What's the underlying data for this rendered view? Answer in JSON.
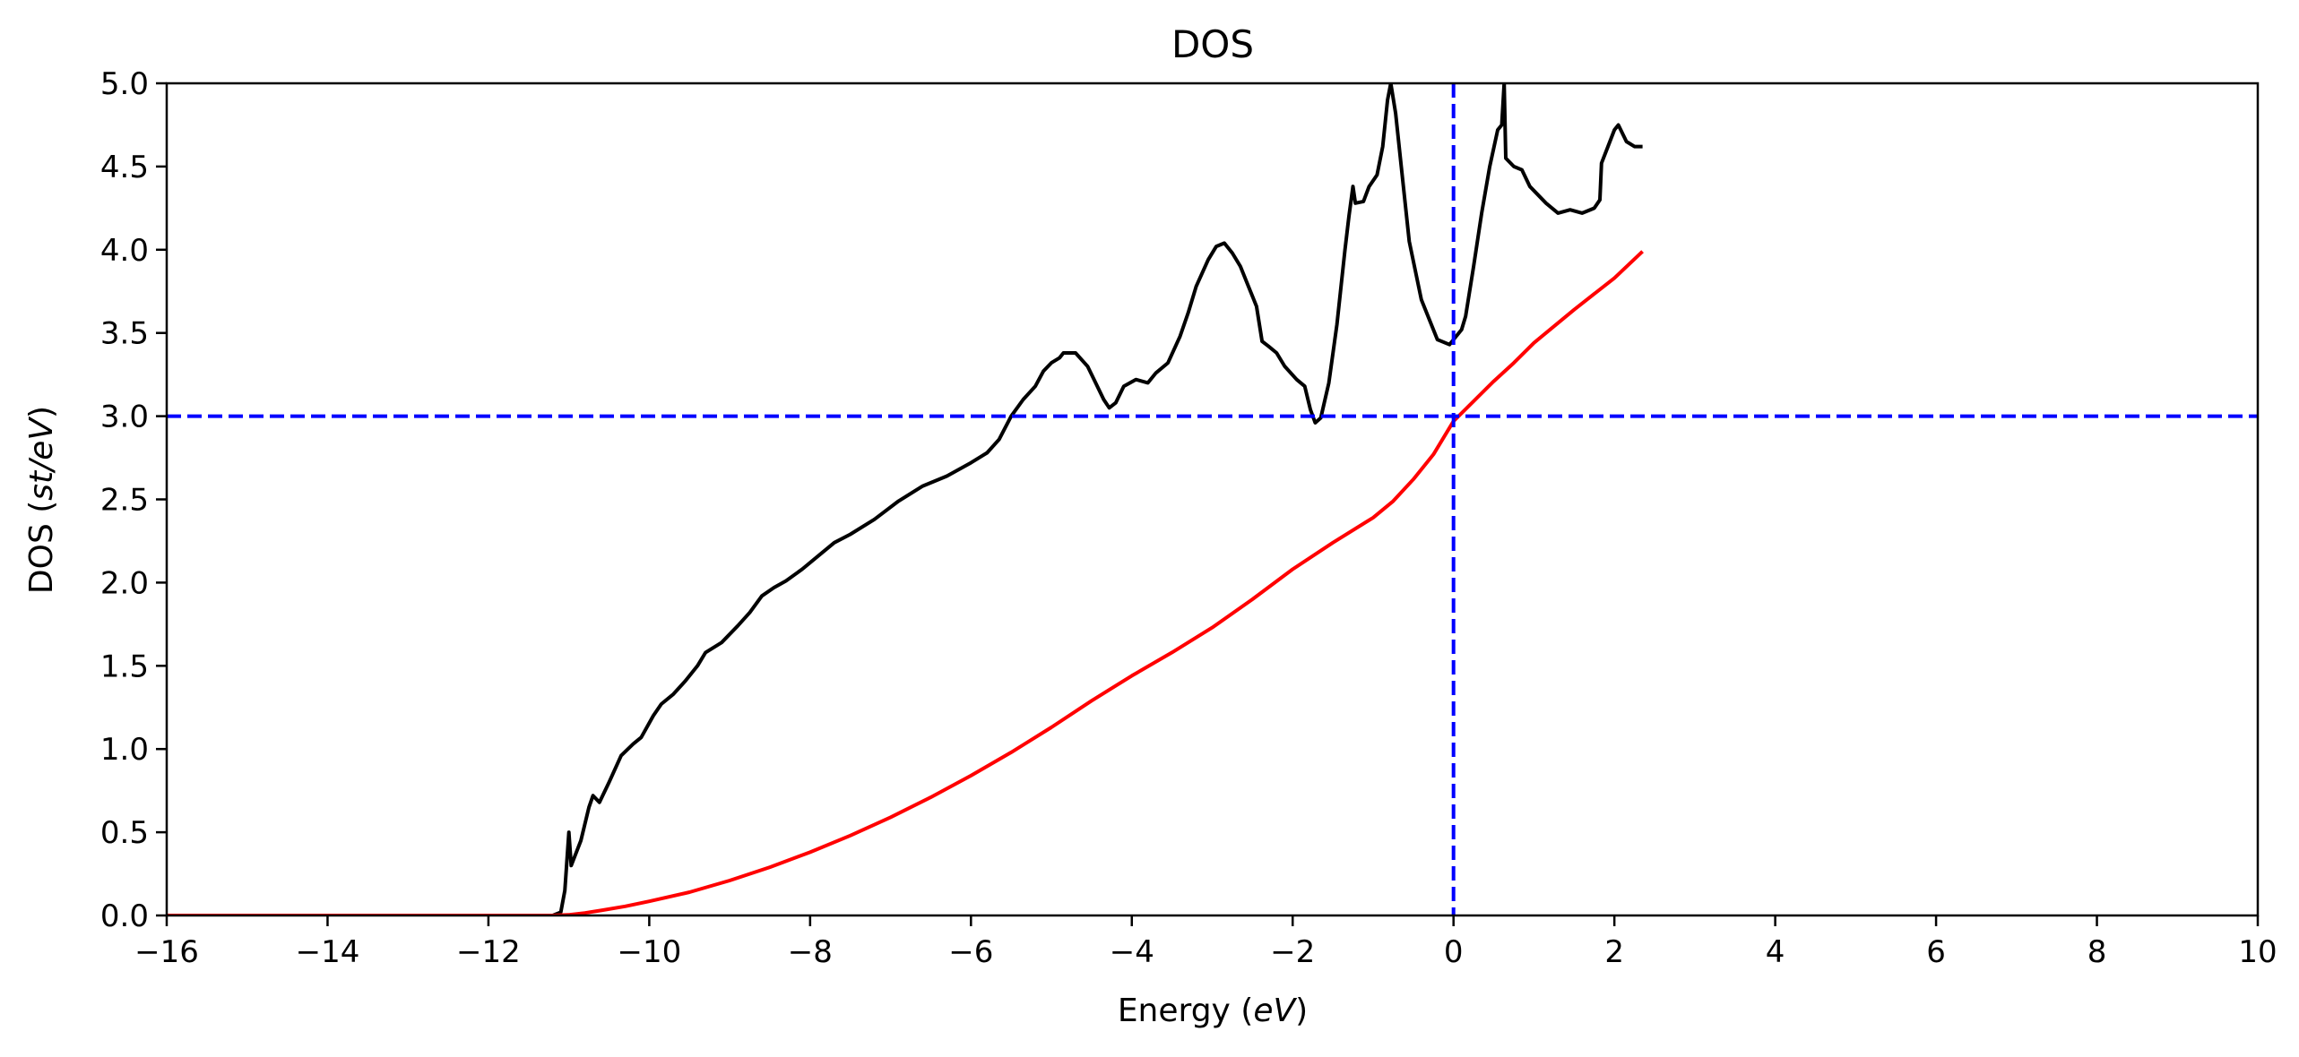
{
  "chart_data": {
    "type": "line",
    "title": "DOS",
    "xlabel": {
      "prefix": "Energy (",
      "italic": "eV",
      "suffix": ")"
    },
    "ylabel": {
      "prefix": "DOS (",
      "italic": "st/eV",
      "suffix": ")"
    },
    "xlim": [
      -16,
      10
    ],
    "ylim": [
      0,
      5
    ],
    "x_ticks": [
      -16,
      -14,
      -12,
      -10,
      -8,
      -6,
      -4,
      -2,
      0,
      2,
      4,
      6,
      8,
      10
    ],
    "x_tick_labels": [
      "−16",
      "−14",
      "−12",
      "−10",
      "−8",
      "−6",
      "−4",
      "−2",
      "0",
      "2",
      "4",
      "6",
      "8",
      "10"
    ],
    "y_ticks": [
      0,
      0.5,
      1,
      1.5,
      2,
      2.5,
      3,
      3.5,
      4,
      4.5,
      5
    ],
    "y_tick_labels": [
      "0.0",
      "0.5",
      "1.0",
      "1.5",
      "2.0",
      "2.5",
      "3.0",
      "3.5",
      "4.0",
      "4.5",
      "5.0"
    ],
    "grid": false,
    "reference_lines": [
      {
        "orientation": "horizontal",
        "value": 3.0,
        "color": "#0000ff",
        "style": "dashed"
      },
      {
        "orientation": "vertical",
        "value": 0.0,
        "color": "#0000ff",
        "style": "dashed"
      }
    ],
    "series": [
      {
        "color": "#000000",
        "points": [
          [
            -16,
            0
          ],
          [
            -11.2,
            0
          ],
          [
            -11.1,
            0.02
          ],
          [
            -11.05,
            0.15
          ],
          [
            -11.0,
            0.5
          ],
          [
            -10.97,
            0.3
          ],
          [
            -10.85,
            0.45
          ],
          [
            -10.75,
            0.65
          ],
          [
            -10.7,
            0.72
          ],
          [
            -10.62,
            0.68
          ],
          [
            -10.5,
            0.8
          ],
          [
            -10.35,
            0.96
          ],
          [
            -10.2,
            1.03
          ],
          [
            -10.1,
            1.07
          ],
          [
            -9.95,
            1.2
          ],
          [
            -9.85,
            1.27
          ],
          [
            -9.7,
            1.33
          ],
          [
            -9.55,
            1.41
          ],
          [
            -9.4,
            1.5
          ],
          [
            -9.3,
            1.58
          ],
          [
            -9.1,
            1.64
          ],
          [
            -8.9,
            1.74
          ],
          [
            -8.75,
            1.82
          ],
          [
            -8.6,
            1.92
          ],
          [
            -8.45,
            1.97
          ],
          [
            -8.3,
            2.01
          ],
          [
            -8.1,
            2.08
          ],
          [
            -7.9,
            2.16
          ],
          [
            -7.7,
            2.24
          ],
          [
            -7.5,
            2.29
          ],
          [
            -7.2,
            2.38
          ],
          [
            -6.9,
            2.49
          ],
          [
            -6.6,
            2.58
          ],
          [
            -6.3,
            2.64
          ],
          [
            -6.0,
            2.72
          ],
          [
            -5.8,
            2.78
          ],
          [
            -5.65,
            2.86
          ],
          [
            -5.5,
            3.0
          ],
          [
            -5.35,
            3.1
          ],
          [
            -5.2,
            3.18
          ],
          [
            -5.1,
            3.27
          ],
          [
            -5.0,
            3.32
          ],
          [
            -4.9,
            3.35
          ],
          [
            -4.85,
            3.38
          ],
          [
            -4.7,
            3.38
          ],
          [
            -4.55,
            3.3
          ],
          [
            -4.45,
            3.2
          ],
          [
            -4.35,
            3.1
          ],
          [
            -4.28,
            3.05
          ],
          [
            -4.2,
            3.08
          ],
          [
            -4.1,
            3.18
          ],
          [
            -3.95,
            3.22
          ],
          [
            -3.8,
            3.2
          ],
          [
            -3.7,
            3.26
          ],
          [
            -3.55,
            3.32
          ],
          [
            -3.4,
            3.48
          ],
          [
            -3.3,
            3.62
          ],
          [
            -3.2,
            3.78
          ],
          [
            -3.05,
            3.94
          ],
          [
            -2.95,
            4.02
          ],
          [
            -2.85,
            4.04
          ],
          [
            -2.75,
            3.98
          ],
          [
            -2.65,
            3.9
          ],
          [
            -2.55,
            3.78
          ],
          [
            -2.45,
            3.66
          ],
          [
            -2.38,
            3.45
          ],
          [
            -2.3,
            3.42
          ],
          [
            -2.2,
            3.38
          ],
          [
            -2.1,
            3.3
          ],
          [
            -1.95,
            3.22
          ],
          [
            -1.85,
            3.18
          ],
          [
            -1.78,
            3.04
          ],
          [
            -1.72,
            2.96
          ],
          [
            -1.65,
            2.99
          ],
          [
            -1.55,
            3.2
          ],
          [
            -1.45,
            3.55
          ],
          [
            -1.35,
            4.0
          ],
          [
            -1.3,
            4.2
          ],
          [
            -1.25,
            4.38
          ],
          [
            -1.22,
            4.28
          ],
          [
            -1.12,
            4.29
          ],
          [
            -1.05,
            4.38
          ],
          [
            -0.95,
            4.45
          ],
          [
            -0.88,
            4.62
          ],
          [
            -0.82,
            4.9
          ],
          [
            -0.78,
            5.0
          ],
          [
            -0.72,
            4.82
          ],
          [
            -0.65,
            4.5
          ],
          [
            -0.55,
            4.05
          ],
          [
            -0.4,
            3.7
          ],
          [
            -0.2,
            3.46
          ],
          [
            -0.05,
            3.43
          ],
          [
            0.0,
            3.46
          ],
          [
            0.1,
            3.52
          ],
          [
            0.15,
            3.6
          ],
          [
            0.25,
            3.9
          ],
          [
            0.35,
            4.22
          ],
          [
            0.45,
            4.5
          ],
          [
            0.55,
            4.72
          ],
          [
            0.6,
            4.75
          ],
          [
            0.63,
            5.0
          ],
          [
            0.65,
            4.55
          ],
          [
            0.75,
            4.5
          ],
          [
            0.85,
            4.48
          ],
          [
            0.95,
            4.38
          ],
          [
            1.15,
            4.28
          ],
          [
            1.3,
            4.22
          ],
          [
            1.45,
            4.24
          ],
          [
            1.6,
            4.22
          ],
          [
            1.75,
            4.25
          ],
          [
            1.82,
            4.3
          ],
          [
            1.84,
            4.52
          ],
          [
            1.92,
            4.62
          ],
          [
            2.0,
            4.72
          ],
          [
            2.05,
            4.75
          ],
          [
            2.15,
            4.65
          ],
          [
            2.25,
            4.62
          ],
          [
            2.35,
            4.62
          ]
        ]
      },
      {
        "color": "#ff0000",
        "points": [
          [
            -16,
            0
          ],
          [
            -11.2,
            0
          ],
          [
            -11.0,
            0.004
          ],
          [
            -10.8,
            0.015
          ],
          [
            -10.6,
            0.03
          ],
          [
            -10.3,
            0.055
          ],
          [
            -10.0,
            0.085
          ],
          [
            -9.5,
            0.14
          ],
          [
            -9.0,
            0.21
          ],
          [
            -8.5,
            0.29
          ],
          [
            -8.0,
            0.38
          ],
          [
            -7.5,
            0.48
          ],
          [
            -7.0,
            0.59
          ],
          [
            -6.5,
            0.71
          ],
          [
            -6.0,
            0.84
          ],
          [
            -5.5,
            0.98
          ],
          [
            -5.0,
            1.13
          ],
          [
            -4.5,
            1.29
          ],
          [
            -4.0,
            1.44
          ],
          [
            -3.5,
            1.58
          ],
          [
            -3.0,
            1.73
          ],
          [
            -2.5,
            1.9
          ],
          [
            -2.0,
            2.08
          ],
          [
            -1.5,
            2.24
          ],
          [
            -1.0,
            2.39
          ],
          [
            -0.75,
            2.49
          ],
          [
            -0.5,
            2.62
          ],
          [
            -0.25,
            2.77
          ],
          [
            0.0,
            2.97
          ],
          [
            0.25,
            3.09
          ],
          [
            0.5,
            3.21
          ],
          [
            0.75,
            3.32
          ],
          [
            1.0,
            3.44
          ],
          [
            1.5,
            3.64
          ],
          [
            2.0,
            3.83
          ],
          [
            2.35,
            3.99
          ]
        ]
      }
    ]
  }
}
